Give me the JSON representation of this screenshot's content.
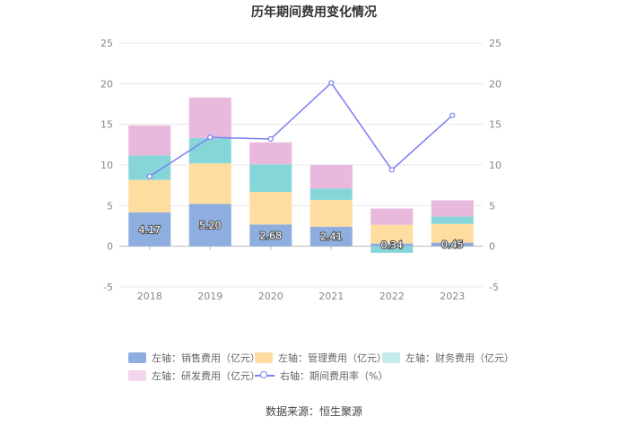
{
  "chart_data": {
    "type": "bar",
    "title": "历年期间费用变化情况",
    "categories": [
      "2018",
      "2019",
      "2020",
      "2021",
      "2022",
      "2023"
    ],
    "stacked": true,
    "left_axis": {
      "ylim": [
        -5,
        25
      ],
      "ticks": [
        "25",
        "20",
        "15",
        "10",
        "5",
        "0",
        "-5"
      ]
    },
    "right_axis": {
      "ylim": [
        -5,
        25
      ],
      "ticks": [
        "25",
        "20",
        "15",
        "10",
        "5",
        "0",
        "-5"
      ]
    },
    "series": [
      {
        "name": "左轴：销售费用（亿元）",
        "type": "bar",
        "color": "#8eaee0",
        "values": [
          4.17,
          5.2,
          2.68,
          2.41,
          0.34,
          0.45
        ],
        "labels": [
          "4.17",
          "5.20",
          "2.68",
          "2.41",
          "0.34",
          "0.45"
        ]
      },
      {
        "name": "左轴：管理费用（亿元）",
        "type": "bar",
        "color": "#ffdca0",
        "values": [
          4.0,
          5.0,
          4.0,
          3.3,
          2.3,
          2.3
        ]
      },
      {
        "name": "左轴：财务费用（亿元）",
        "type": "bar",
        "color": "#86d6d9",
        "values": [
          3.0,
          3.1,
          3.4,
          1.4,
          -0.8,
          0.9
        ]
      },
      {
        "name": "左轴：研发费用（亿元）",
        "type": "bar",
        "color": "#e8b9dc",
        "values": [
          3.7,
          5.0,
          2.7,
          2.9,
          2.0,
          2.0
        ]
      },
      {
        "name": "右轴：期间费用率（%）",
        "type": "line",
        "color": "#7b7ff2",
        "values": [
          8.6,
          13.4,
          13.2,
          20.1,
          9.4,
          16.1
        ]
      }
    ],
    "source": "数据来源：恒生聚源"
  }
}
